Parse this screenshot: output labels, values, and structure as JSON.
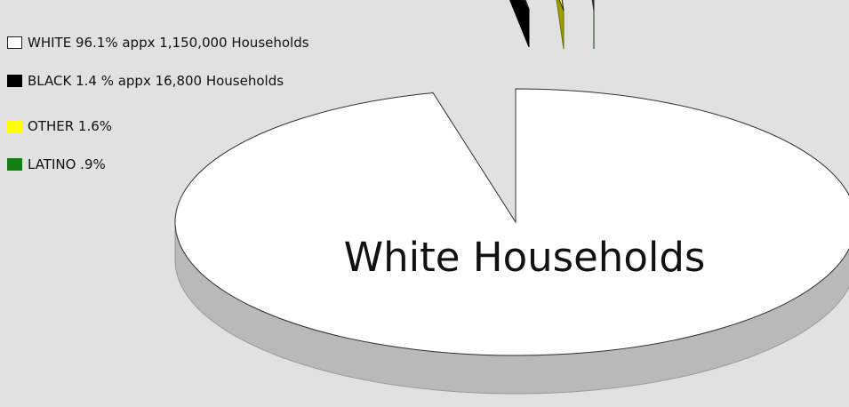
{
  "chart_data": {
    "type": "pie",
    "style": "3d",
    "title": "",
    "slices": [
      {
        "name": "WHITE",
        "value": 96.1,
        "color": "#ffffff"
      },
      {
        "name": "BLACK",
        "value": 1.4,
        "color": "#000000"
      },
      {
        "name": "OTHER",
        "value": 1.6,
        "color": "#ffff00"
      },
      {
        "name": "LATINO",
        "value": 0.9,
        "color": "#138013"
      }
    ],
    "legend": {
      "position": "top-left",
      "entries": [
        {
          "label": "WHITE 96.1% appx 1,150,000 Households",
          "color": "#ffffff"
        },
        {
          "label": "BLACK 1.4 % appx 16,800 Households",
          "color": "#000000"
        },
        {
          "label": "OTHER 1.6%",
          "color": "#ffff00"
        },
        {
          "label": "LATINO .9%",
          "color": "#138013"
        }
      ]
    },
    "annotations": [
      {
        "text": "White Households",
        "target": "WHITE"
      }
    ]
  }
}
